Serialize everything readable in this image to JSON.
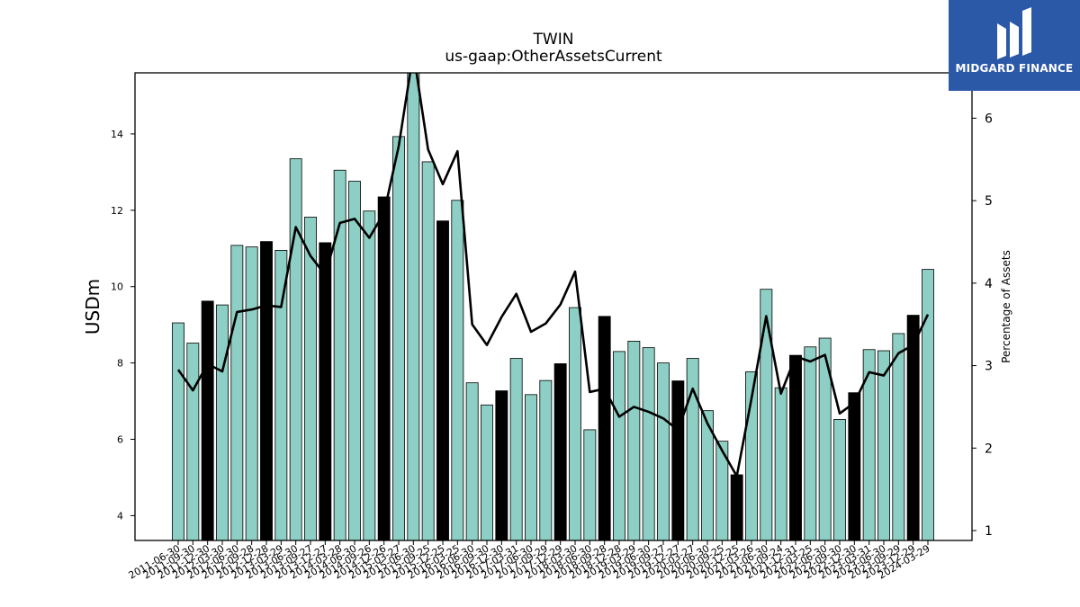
{
  "brand": {
    "name": "MIDGARD FINANCE",
    "bg_color": "#2c58a8"
  },
  "chart_data": {
    "type": "bar",
    "title": "TWIN",
    "subtitle": "us-gaap:OtherAssetsCurrent",
    "ylabel": "USDm",
    "ylabel_right": "Percentage of Assets",
    "ylim": [
      3.35,
      15.6
    ],
    "ylim_right": [
      0.88,
      6.55
    ],
    "yticks": [
      4,
      6,
      8,
      10,
      12,
      14
    ],
    "yticks_right": [
      1,
      2,
      3,
      4,
      5,
      6
    ],
    "bar_color": "#8dcfc4",
    "highlight_color": "#000000",
    "line_color": "#000000",
    "grid": false,
    "categories": [
      "2011-06-30",
      "2011-09-30",
      "2011-12-30",
      "2012-03-30",
      "2012-06-30",
      "2012-09-28",
      "2012-12-28",
      "2013-03-29",
      "2013-06-30",
      "2013-09-27",
      "2013-12-27",
      "2014-03-28",
      "2014-06-30",
      "2014-09-26",
      "2014-12-26",
      "2015-03-27",
      "2015-06-30",
      "2015-09-25",
      "2015-12-25",
      "2016-03-25",
      "2016-06-30",
      "2016-09-30",
      "2016-12-30",
      "2017-03-31",
      "2017-06-30",
      "2017-09-29",
      "2017-12-29",
      "2018-03-30",
      "2018-06-30",
      "2018-09-28",
      "2018-12-28",
      "2019-03-29",
      "2019-06-30",
      "2019-09-27",
      "2019-12-27",
      "2020-03-27",
      "2020-06-30",
      "2020-09-25",
      "2020-12-25",
      "2021-03-26",
      "2021-06-30",
      "2021-09-24",
      "2021-12-31",
      "2022-03-25",
      "2022-06-30",
      "2022-09-30",
      "2022-12-30",
      "2023-03-31",
      "2023-06-30",
      "2023-09-29",
      "2023-12-29",
      "2024-03-29"
    ],
    "series": [
      {
        "kind": "bar",
        "axis": "left",
        "values": [
          9.05,
          8.52,
          9.62,
          9.52,
          11.08,
          11.04,
          11.18,
          10.95,
          13.35,
          11.82,
          11.15,
          13.05,
          12.76,
          11.98,
          12.35,
          13.93,
          15.7,
          13.27,
          11.72,
          12.26,
          7.48,
          6.9,
          7.27,
          8.12,
          7.17,
          7.54,
          7.98,
          9.45,
          6.25,
          9.22,
          8.3,
          8.57,
          8.4,
          8.0,
          7.53,
          8.12,
          6.75,
          5.95,
          5.07,
          7.77,
          9.93,
          7.35,
          8.2,
          8.42,
          8.65,
          6.52,
          7.22,
          8.35,
          8.32,
          8.77,
          9.25,
          10.45
        ],
        "highlight": [
          false,
          false,
          true,
          false,
          false,
          false,
          true,
          false,
          false,
          false,
          true,
          false,
          false,
          false,
          true,
          false,
          false,
          false,
          true,
          false,
          false,
          false,
          true,
          false,
          false,
          false,
          true,
          false,
          false,
          true,
          false,
          false,
          false,
          false,
          true,
          false,
          false,
          false,
          true,
          false,
          false,
          false,
          true,
          false,
          false,
          false,
          true,
          false,
          false,
          false,
          true,
          false
        ]
      },
      {
        "kind": "line",
        "axis": "right",
        "values": [
          2.95,
          2.7,
          3.02,
          2.93,
          3.65,
          3.68,
          3.73,
          3.71,
          4.68,
          4.33,
          4.1,
          4.73,
          4.78,
          4.55,
          4.85,
          5.66,
          6.8,
          5.62,
          5.2,
          5.6,
          3.5,
          3.25,
          3.59,
          3.87,
          3.41,
          3.51,
          3.74,
          4.14,
          2.68,
          2.72,
          2.38,
          2.5,
          2.44,
          2.36,
          2.22,
          2.72,
          2.3,
          1.97,
          1.66,
          2.6,
          3.6,
          2.66,
          3.11,
          3.05,
          3.13,
          2.42,
          2.55,
          2.92,
          2.88,
          3.15,
          3.25,
          3.62
        ]
      }
    ]
  }
}
